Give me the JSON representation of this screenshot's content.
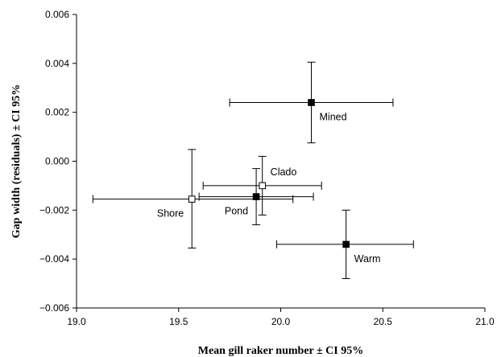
{
  "chart_data": {
    "type": "scatter",
    "title": "",
    "xlabel": "Mean gill raker number ± CI 95%",
    "ylabel": "Gap width (residuals) ± CI 95%",
    "xlim": [
      19.0,
      21.0
    ],
    "ylim": [
      -0.006,
      0.006
    ],
    "x_ticks": [
      "19.0",
      "19.5",
      "20.0",
      "20.5",
      "21.0"
    ],
    "y_ticks": [
      "0.006",
      "0.004",
      "0.002",
      "0.000",
      "−0.002",
      "−0.004",
      "−0.006"
    ],
    "grid": false,
    "legend": "none",
    "points": [
      {
        "label": "Mined",
        "x": 20.15,
        "y": 0.0024,
        "x_low": 19.75,
        "x_high": 20.55,
        "y_low": 0.00075,
        "y_high": 0.00405,
        "marker": "filled-square",
        "label_pos": "below-right"
      },
      {
        "label": "Clado",
        "x": 19.91,
        "y": -0.001,
        "x_low": 19.62,
        "x_high": 20.2,
        "y_low": -0.0022,
        "y_high": 0.0002,
        "marker": "open-square",
        "label_pos": "above-right"
      },
      {
        "label": "Shore",
        "x": 19.565,
        "y": -0.00155,
        "x_low": 19.08,
        "x_high": 20.06,
        "y_low": -0.00355,
        "y_high": 0.00048,
        "marker": "open-square",
        "label_pos": "below-left"
      },
      {
        "label": "Pond",
        "x": 19.88,
        "y": -0.00145,
        "x_low": 19.6,
        "x_high": 20.16,
        "y_low": -0.0026,
        "y_high": -0.0003,
        "marker": "filled-square",
        "label_pos": "below-left"
      },
      {
        "label": "Warm",
        "x": 20.32,
        "y": -0.0034,
        "x_low": 19.98,
        "x_high": 20.65,
        "y_low": -0.0048,
        "y_high": -0.002,
        "marker": "filled-square",
        "label_pos": "below-right"
      }
    ]
  }
}
